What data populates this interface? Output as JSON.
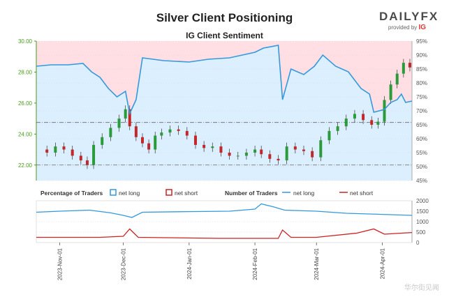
{
  "header": {
    "title": "Silver Client Positioning",
    "subtitle": "IG Client Sentiment"
  },
  "brand": {
    "logo": "DAILYFX",
    "provided_by": "provided by",
    "provider": "IG"
  },
  "watermark": "华尔街见闻",
  "legend": {
    "pct_title": "Percentage of Traders",
    "pct_long": "net long",
    "pct_short": "net short",
    "num_title": "Number of Traders",
    "num_long": "net long",
    "num_short": "net short"
  },
  "colors": {
    "long": "#3399dd",
    "short": "#cc2222",
    "long_fill": "#dcefff",
    "short_fill": "#ffdfe3",
    "price_axis": "#4a9a1a",
    "candle_up": "#2a9a3a",
    "candle_down": "#c0282c"
  },
  "chart_data": [
    {
      "type": "line",
      "title": "Silver Client Positioning",
      "subtitle": "IG Client Sentiment",
      "x_tick_labels": [
        "2023-Nov-01",
        "2023-Dec-01",
        "2024-Jan-01",
        "2024-Feb-01",
        "2024-Mar-01",
        "2024-Apr-01"
      ],
      "x_range": [
        "2023-10-21",
        "2024-04-15"
      ],
      "left_axis": {
        "ticks": [
          "22.00",
          "24.00",
          "26.00",
          "28.00",
          "30.00"
        ],
        "range": [
          21.0,
          30.0
        ]
      },
      "right_axis": {
        "ticks": [
          "45%",
          "50%",
          "55%",
          "60%",
          "65%",
          "70%",
          "75%",
          "80%",
          "85%",
          "90%",
          "95%"
        ],
        "range": [
          45,
          95
        ]
      },
      "reference_lines": [
        22.0,
        24.75
      ],
      "series": [
        {
          "name": "net long",
          "axis": "right",
          "points": [
            [
              "2023-10-21",
              86.0
            ],
            [
              "2023-10-28",
              86.5
            ],
            [
              "2023-11-05",
              86.5
            ],
            [
              "2023-11-12",
              87.0
            ],
            [
              "2023-11-16",
              84.0
            ],
            [
              "2023-11-20",
              82.0
            ],
            [
              "2023-11-24",
              78.0
            ],
            [
              "2023-11-28",
              75.0
            ],
            [
              "2023-12-02",
              77.0
            ],
            [
              "2023-12-04",
              69.0
            ],
            [
              "2023-12-07",
              74.0
            ],
            [
              "2023-12-10",
              89.0
            ],
            [
              "2023-12-20",
              88.0
            ],
            [
              "2024-01-01",
              87.5
            ],
            [
              "2024-01-10",
              88.5
            ],
            [
              "2024-01-20",
              89.0
            ],
            [
              "2024-02-01",
              91.0
            ],
            [
              "2024-02-05",
              92.5
            ],
            [
              "2024-02-12",
              93.5
            ],
            [
              "2024-02-14",
              74.0
            ],
            [
              "2024-02-18",
              85.0
            ],
            [
              "2024-02-24",
              83.0
            ],
            [
              "2024-02-29",
              86.0
            ],
            [
              "2024-03-04",
              90.0
            ],
            [
              "2024-03-10",
              86.0
            ],
            [
              "2024-03-16",
              84.0
            ],
            [
              "2024-03-22",
              78.0
            ],
            [
              "2024-03-26",
              76.0
            ],
            [
              "2024-03-28",
              69.5
            ],
            [
              "2024-04-02",
              70.5
            ],
            [
              "2024-04-05",
              73.0
            ],
            [
              "2024-04-08",
              74.0
            ],
            [
              "2024-04-10",
              76.0
            ],
            [
              "2024-04-12",
              73.0
            ],
            [
              "2024-04-15",
              73.5
            ]
          ]
        },
        {
          "name": "price",
          "axis": "left",
          "points": [
            [
              "2023-10-22",
              23.0
            ],
            [
              "2023-10-26",
              22.8
            ],
            [
              "2023-10-30",
              23.2
            ],
            [
              "2023-11-03",
              23.0
            ],
            [
              "2023-11-07",
              22.6
            ],
            [
              "2023-11-11",
              22.3
            ],
            [
              "2023-11-14",
              22.0
            ],
            [
              "2023-11-17",
              23.3
            ],
            [
              "2023-11-21",
              23.8
            ],
            [
              "2023-11-25",
              24.4
            ],
            [
              "2023-11-29",
              25.0
            ],
            [
              "2023-12-02",
              25.6
            ],
            [
              "2023-12-04",
              24.5
            ],
            [
              "2023-12-07",
              23.8
            ],
            [
              "2023-12-10",
              23.4
            ],
            [
              "2023-12-13",
              23.0
            ],
            [
              "2023-12-16",
              23.9
            ],
            [
              "2023-12-19",
              24.1
            ],
            [
              "2023-12-23",
              24.3
            ],
            [
              "2023-12-27",
              24.2
            ],
            [
              "2023-12-31",
              23.9
            ],
            [
              "2024-01-04",
              23.3
            ],
            [
              "2024-01-08",
              23.1
            ],
            [
              "2024-01-12",
              23.2
            ],
            [
              "2024-01-16",
              22.8
            ],
            [
              "2024-01-20",
              22.6
            ],
            [
              "2024-01-24",
              22.6
            ],
            [
              "2024-01-28",
              22.8
            ],
            [
              "2024-02-01",
              23.0
            ],
            [
              "2024-02-04",
              22.7
            ],
            [
              "2024-02-08",
              22.4
            ],
            [
              "2024-02-12",
              22.3
            ],
            [
              "2024-02-16",
              23.2
            ],
            [
              "2024-02-20",
              23.0
            ],
            [
              "2024-02-24",
              22.9
            ],
            [
              "2024-02-28",
              22.5
            ],
            [
              "2024-03-03",
              23.6
            ],
            [
              "2024-03-07",
              24.2
            ],
            [
              "2024-03-11",
              24.5
            ],
            [
              "2024-03-15",
              25.0
            ],
            [
              "2024-03-19",
              25.3
            ],
            [
              "2024-03-23",
              24.9
            ],
            [
              "2024-03-27",
              24.6
            ],
            [
              "2024-03-30",
              24.8
            ],
            [
              "2024-04-02",
              26.2
            ],
            [
              "2024-04-05",
              27.2
            ],
            [
              "2024-04-08",
              27.9
            ],
            [
              "2024-04-11",
              28.6
            ],
            [
              "2024-04-14",
              28.3
            ]
          ]
        }
      ]
    },
    {
      "type": "line",
      "title": "Number of Traders",
      "y_ticks": [
        "0",
        "500",
        "1000",
        "1500",
        "2000"
      ],
      "y_range": [
        0,
        2000
      ],
      "series": [
        {
          "name": "net long",
          "points": [
            [
              "2023-10-21",
              1450
            ],
            [
              "2023-11-01",
              1500
            ],
            [
              "2023-11-15",
              1550
            ],
            [
              "2023-11-25",
              1420
            ],
            [
              "2023-12-01",
              1300
            ],
            [
              "2023-12-05",
              1200
            ],
            [
              "2023-12-10",
              1450
            ],
            [
              "2024-01-01",
              1480
            ],
            [
              "2024-01-20",
              1500
            ],
            [
              "2024-02-01",
              1600
            ],
            [
              "2024-02-04",
              1850
            ],
            [
              "2024-02-10",
              1700
            ],
            [
              "2024-02-15",
              1550
            ],
            [
              "2024-03-01",
              1500
            ],
            [
              "2024-03-15",
              1400
            ],
            [
              "2024-03-31",
              1350
            ],
            [
              "2024-04-15",
              1300
            ]
          ]
        },
        {
          "name": "net short",
          "points": [
            [
              "2023-10-21",
              250
            ],
            [
              "2023-11-20",
              250
            ],
            [
              "2023-12-01",
              300
            ],
            [
              "2023-12-04",
              650
            ],
            [
              "2023-12-08",
              250
            ],
            [
              "2024-01-15",
              200
            ],
            [
              "2024-02-12",
              200
            ],
            [
              "2024-02-14",
              600
            ],
            [
              "2024-02-18",
              250
            ],
            [
              "2024-03-01",
              250
            ],
            [
              "2024-03-20",
              450
            ],
            [
              "2024-03-28",
              650
            ],
            [
              "2024-04-02",
              400
            ],
            [
              "2024-04-15",
              480
            ]
          ]
        }
      ]
    }
  ]
}
